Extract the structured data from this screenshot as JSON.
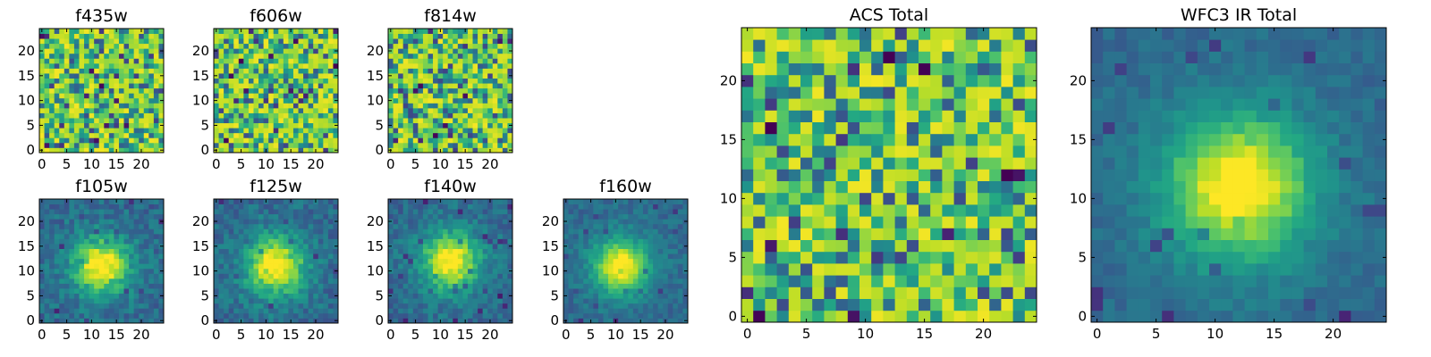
{
  "chart_data": {
    "type": "heatmap",
    "colormap": "viridis",
    "grid_size": [
      25,
      25
    ],
    "panels": [
      {
        "id": "f435w",
        "title": "f435w",
        "pattern": "noise",
        "seed": 11,
        "xlim": [
          0,
          24
        ],
        "ylim": [
          0,
          24
        ],
        "xticks": [
          0,
          5,
          10,
          15,
          20
        ],
        "yticks": [
          0,
          5,
          10,
          15,
          20
        ]
      },
      {
        "id": "f606w",
        "title": "f606w",
        "pattern": "noise",
        "seed": 23,
        "xlim": [
          0,
          24
        ],
        "ylim": [
          0,
          24
        ],
        "xticks": [
          0,
          5,
          10,
          15,
          20
        ],
        "yticks": [
          0,
          5,
          10,
          15,
          20
        ]
      },
      {
        "id": "f814w",
        "title": "f814w",
        "pattern": "noise",
        "seed": 37,
        "xlim": [
          0,
          24
        ],
        "ylim": [
          0,
          24
        ],
        "xticks": [
          0,
          5,
          10,
          15,
          20
        ],
        "yticks": [
          0,
          5,
          10,
          15,
          20
        ]
      },
      {
        "id": "f105w",
        "title": "f105w",
        "pattern": "source",
        "seed": 41,
        "source_center": [
          12,
          11
        ],
        "source_sigma": 3.6,
        "noise": 0.22,
        "xlim": [
          0,
          24
        ],
        "ylim": [
          0,
          24
        ],
        "xticks": [
          0,
          5,
          10,
          15,
          20
        ],
        "yticks": [
          0,
          5,
          10,
          15,
          20
        ]
      },
      {
        "id": "f125w",
        "title": "f125w",
        "pattern": "source",
        "seed": 53,
        "source_center": [
          12,
          11
        ],
        "source_sigma": 3.8,
        "noise": 0.22,
        "xlim": [
          0,
          24
        ],
        "ylim": [
          0,
          24
        ],
        "xticks": [
          0,
          5,
          10,
          15,
          20
        ],
        "yticks": [
          0,
          5,
          10,
          15,
          20
        ]
      },
      {
        "id": "f140w",
        "title": "f140w",
        "pattern": "source",
        "seed": 67,
        "source_center": [
          12,
          12
        ],
        "source_sigma": 3.7,
        "noise": 0.2,
        "xlim": [
          0,
          24
        ],
        "ylim": [
          0,
          24
        ],
        "xticks": [
          0,
          5,
          10,
          15,
          20
        ],
        "yticks": [
          0,
          5,
          10,
          15,
          20
        ]
      },
      {
        "id": "f160w",
        "title": "f160w",
        "pattern": "source",
        "seed": 79,
        "source_center": [
          11,
          11
        ],
        "source_sigma": 3.5,
        "noise": 0.16,
        "xlim": [
          0,
          24
        ],
        "ylim": [
          0,
          24
        ],
        "xticks": [
          0,
          5,
          10,
          15,
          20
        ],
        "yticks": [
          0,
          5,
          10,
          15,
          20
        ]
      },
      {
        "id": "acs-total",
        "title": "ACS Total",
        "pattern": "noise",
        "seed": 97,
        "xlim": [
          0,
          24
        ],
        "ylim": [
          0,
          24
        ],
        "xticks": [
          0,
          5,
          10,
          15,
          20
        ],
        "yticks": [
          0,
          5,
          10,
          15,
          20
        ]
      },
      {
        "id": "wfc3-ir-total",
        "title": "WFC3 IR Total",
        "pattern": "source",
        "seed": 101,
        "source_center": [
          12,
          11
        ],
        "source_sigma": 4.0,
        "noise": 0.12,
        "xlim": [
          0,
          24
        ],
        "ylim": [
          0,
          24
        ],
        "xticks": [
          0,
          5,
          10,
          15,
          20
        ],
        "yticks": [
          0,
          5,
          10,
          15,
          20
        ]
      }
    ]
  },
  "colors": {
    "frame": "#000000",
    "background": "#ffffff"
  }
}
